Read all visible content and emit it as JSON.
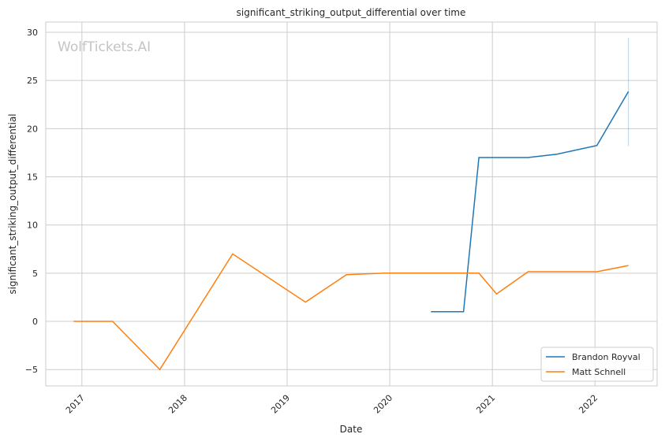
{
  "chart_data": {
    "type": "line",
    "title": "significant_striking_output_differential over time",
    "xlabel": "Date",
    "ylabel": "significant_striking_output_differential",
    "watermark": "WolfTickets.AI",
    "xlim": [
      "2016-08-25",
      "2022-08-10"
    ],
    "ylim": [
      -6.7,
      31.06
    ],
    "x_ticks": [
      "2017",
      "2018",
      "2019",
      "2020",
      "2021",
      "2022"
    ],
    "y_ticks": [
      -5,
      0,
      5,
      10,
      15,
      20,
      25,
      30
    ],
    "grid": true,
    "legend_position": "bottom-right",
    "series": [
      {
        "name": "Brandon Royval",
        "color": "#1f77b4",
        "x": [
          "2020-05-27",
          "2020-09-20",
          "2020-11-14",
          "2021-05-08",
          "2021-08-19",
          "2022-01-08",
          "2022-04-30"
        ],
        "y": [
          1,
          1,
          17,
          17,
          17.35,
          18.25,
          23.85
        ],
        "error_band_last": [
          18.2,
          29.4
        ]
      },
      {
        "name": "Matt Schnell",
        "color": "#ff7f0e",
        "x": [
          "2016-12-02",
          "2017-04-20",
          "2017-10-05",
          "2018-06-21",
          "2019-03-07",
          "2019-07-31",
          "2019-12-14",
          "2020-11-14",
          "2021-01-16",
          "2021-05-08",
          "2022-01-08",
          "2022-04-30"
        ],
        "y": [
          0,
          0,
          -5,
          7,
          2,
          4.85,
          5,
          5,
          2.85,
          5.15,
          5.15,
          5.8
        ]
      }
    ]
  }
}
